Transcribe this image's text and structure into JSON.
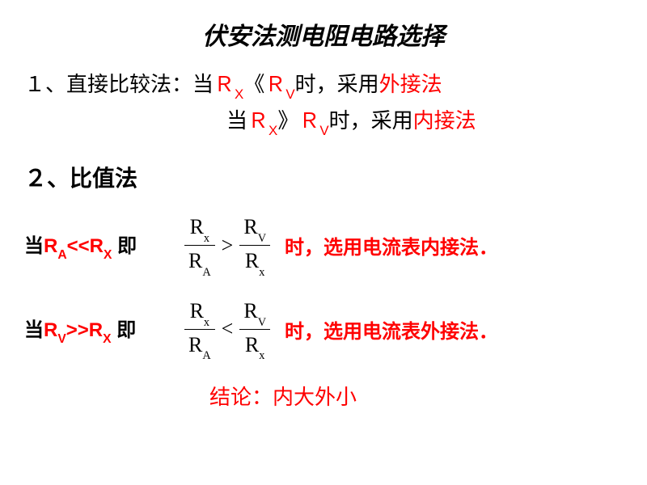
{
  "title": "伏安法测电阻电路选择",
  "line1_prefix": "１、直接比较法：当",
  "rx": "Ｒ",
  "sub_x": "X",
  "ll": "《",
  "rv": "Ｒ",
  "sub_v": "V",
  "line1_mid": "时，采用",
  "method1": "外接法",
  "line2_prefix": "当",
  "gg": "》",
  "sub_x2": "X",
  "line2_mid": "时，采用",
  "method2": "内接法",
  "section2": "２、比值法",
  "cond1_prefix": "当",
  "cond1_mid": "R",
  "cond1_sub_a": "A",
  "cond1_op": "<<",
  "cond1_sub_x": "X",
  "cond1_suffix": "即",
  "frac_rx": "R",
  "frac_sub_x": "x",
  "frac_ra": "R",
  "frac_sub_a": "A",
  "gt": ">",
  "frac_rv": "R",
  "frac_sub_v": "V",
  "result1": "时，选用电流表内接法．",
  "cond2_prefix": "当",
  "cond2_mid": "R",
  "cond2_sub_v": "V",
  "cond2_op": ">>",
  "cond2_sub_x": "X",
  "cond2_suffix": "即",
  "lt": "<",
  "result2": "时，选用电流表外接法．",
  "conclusion": "结论：内大外小"
}
